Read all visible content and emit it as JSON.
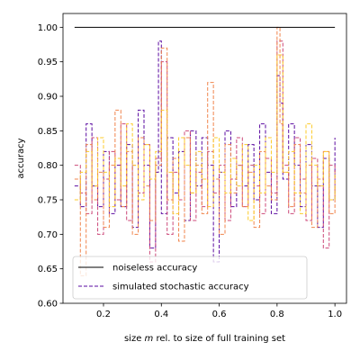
{
  "chart_data": {
    "type": "line",
    "xlabel_prefix": "size ",
    "xlabel_var": "m",
    "xlabel_suffix": " rel. to size of full training set",
    "ylabel": "accuracy",
    "xlim": [
      0.06,
      1.04
    ],
    "ylim": [
      0.6,
      1.02
    ],
    "x_ticks": [
      0.2,
      0.4,
      0.6,
      0.8,
      1.0
    ],
    "x_tick_labels": [
      "0.2",
      "0.4",
      "0.6",
      "0.8",
      "1.0"
    ],
    "y_ticks": [
      0.6,
      0.65,
      0.7,
      0.75,
      0.8,
      0.85,
      0.9,
      0.95,
      1.0
    ],
    "y_tick_labels": [
      "0.60",
      "0.65",
      "0.70",
      "0.75",
      "0.80",
      "0.85",
      "0.90",
      "0.95",
      "1.00"
    ],
    "grid": false,
    "legend_position": "lower-left",
    "legend": [
      {
        "label": "noiseless accuracy",
        "color": "#000000",
        "style": "solid"
      },
      {
        "label": "simulated stochastic accuracy",
        "color": "#5a0aa0",
        "style": "dashed"
      }
    ],
    "noiseless": {
      "x": [
        0.1,
        1.0
      ],
      "y": [
        1.0,
        1.0
      ],
      "color": "#000000"
    },
    "series": [
      {
        "color": "#5a0aa0",
        "x": [
          0.1,
          0.12,
          0.14,
          0.16,
          0.18,
          0.2,
          0.22,
          0.24,
          0.26,
          0.28,
          0.3,
          0.32,
          0.34,
          0.36,
          0.38,
          0.39,
          0.4,
          0.42,
          0.44,
          0.46,
          0.48,
          0.5,
          0.52,
          0.54,
          0.56,
          0.58,
          0.6,
          0.62,
          0.64,
          0.66,
          0.68,
          0.7,
          0.72,
          0.74,
          0.76,
          0.78,
          0.8,
          0.81,
          0.82,
          0.84,
          0.86,
          0.88,
          0.9,
          0.92,
          0.94,
          0.96,
          0.98,
          1.0
        ],
        "y": [
          0.77,
          0.74,
          0.86,
          0.77,
          0.74,
          0.82,
          0.73,
          0.8,
          0.74,
          0.83,
          0.71,
          0.88,
          0.8,
          0.68,
          0.79,
          0.98,
          0.73,
          0.84,
          0.76,
          0.82,
          0.72,
          0.85,
          0.77,
          0.84,
          0.8,
          0.66,
          0.79,
          0.85,
          0.74,
          0.8,
          0.77,
          0.83,
          0.75,
          0.86,
          0.79,
          0.73,
          0.93,
          0.89,
          0.78,
          0.86,
          0.8,
          0.74,
          0.83,
          0.77,
          0.71,
          0.81,
          0.75,
          0.84
        ]
      },
      {
        "color": "#cc4778",
        "x": [
          0.1,
          0.12,
          0.14,
          0.16,
          0.18,
          0.2,
          0.22,
          0.24,
          0.26,
          0.28,
          0.3,
          0.32,
          0.34,
          0.36,
          0.38,
          0.4,
          0.42,
          0.44,
          0.46,
          0.48,
          0.5,
          0.52,
          0.54,
          0.56,
          0.58,
          0.6,
          0.62,
          0.64,
          0.66,
          0.68,
          0.7,
          0.72,
          0.74,
          0.76,
          0.78,
          0.8,
          0.82,
          0.84,
          0.86,
          0.88,
          0.9,
          0.92,
          0.94,
          0.96,
          0.98,
          1.0
        ],
        "y": [
          0.8,
          0.76,
          0.73,
          0.84,
          0.7,
          0.78,
          0.82,
          0.75,
          0.86,
          0.72,
          0.8,
          0.76,
          0.83,
          0.66,
          0.81,
          0.95,
          0.7,
          0.79,
          0.75,
          0.85,
          0.72,
          0.79,
          0.74,
          0.82,
          0.76,
          0.8,
          0.72,
          0.78,
          0.84,
          0.74,
          0.8,
          0.77,
          0.73,
          0.81,
          0.76,
          0.98,
          0.8,
          0.73,
          0.84,
          0.78,
          0.72,
          0.81,
          0.77,
          0.68,
          0.8,
          0.76
        ]
      },
      {
        "color": "#f0844c",
        "x": [
          0.1,
          0.12,
          0.14,
          0.16,
          0.18,
          0.2,
          0.22,
          0.24,
          0.26,
          0.28,
          0.3,
          0.32,
          0.34,
          0.36,
          0.38,
          0.4,
          0.42,
          0.44,
          0.46,
          0.48,
          0.5,
          0.52,
          0.54,
          0.56,
          0.58,
          0.6,
          0.62,
          0.64,
          0.66,
          0.68,
          0.7,
          0.72,
          0.74,
          0.76,
          0.78,
          0.8,
          0.81,
          0.82,
          0.84,
          0.86,
          0.88,
          0.9,
          0.92,
          0.94,
          0.96,
          0.98,
          1.0
        ],
        "y": [
          0.78,
          0.64,
          0.83,
          0.75,
          0.79,
          0.71,
          0.8,
          0.88,
          0.74,
          0.82,
          0.7,
          0.84,
          0.77,
          0.72,
          0.8,
          0.97,
          0.75,
          0.81,
          0.69,
          0.84,
          0.76,
          0.8,
          0.73,
          0.92,
          0.78,
          0.7,
          0.83,
          0.76,
          0.8,
          0.74,
          0.79,
          0.71,
          0.82,
          0.77,
          0.75,
          1.0,
          0.86,
          0.79,
          0.74,
          0.83,
          0.76,
          0.8,
          0.71,
          0.78,
          0.82,
          0.73,
          0.77
        ]
      },
      {
        "color": "#fccb2a",
        "x": [
          0.1,
          0.12,
          0.14,
          0.16,
          0.18,
          0.2,
          0.22,
          0.24,
          0.26,
          0.28,
          0.3,
          0.32,
          0.34,
          0.36,
          0.38,
          0.4,
          0.42,
          0.44,
          0.46,
          0.48,
          0.5,
          0.52,
          0.54,
          0.56,
          0.58,
          0.6,
          0.62,
          0.64,
          0.66,
          0.68,
          0.7,
          0.72,
          0.74,
          0.76,
          0.78,
          0.8,
          0.82,
          0.84,
          0.86,
          0.88,
          0.9,
          0.92,
          0.94,
          0.96,
          0.98,
          1.0
        ],
        "y": [
          0.75,
          0.79,
          0.82,
          0.77,
          0.84,
          0.79,
          0.74,
          0.81,
          0.77,
          0.86,
          0.8,
          0.75,
          0.83,
          0.78,
          0.82,
          0.88,
          0.79,
          0.73,
          0.84,
          0.8,
          0.76,
          0.82,
          0.78,
          0.74,
          0.84,
          0.79,
          0.76,
          0.81,
          0.77,
          0.83,
          0.72,
          0.8,
          0.76,
          0.84,
          0.79,
          0.96,
          0.79,
          0.82,
          0.76,
          0.73,
          0.86,
          0.8,
          0.77,
          0.82,
          0.75,
          0.79
        ]
      }
    ]
  }
}
